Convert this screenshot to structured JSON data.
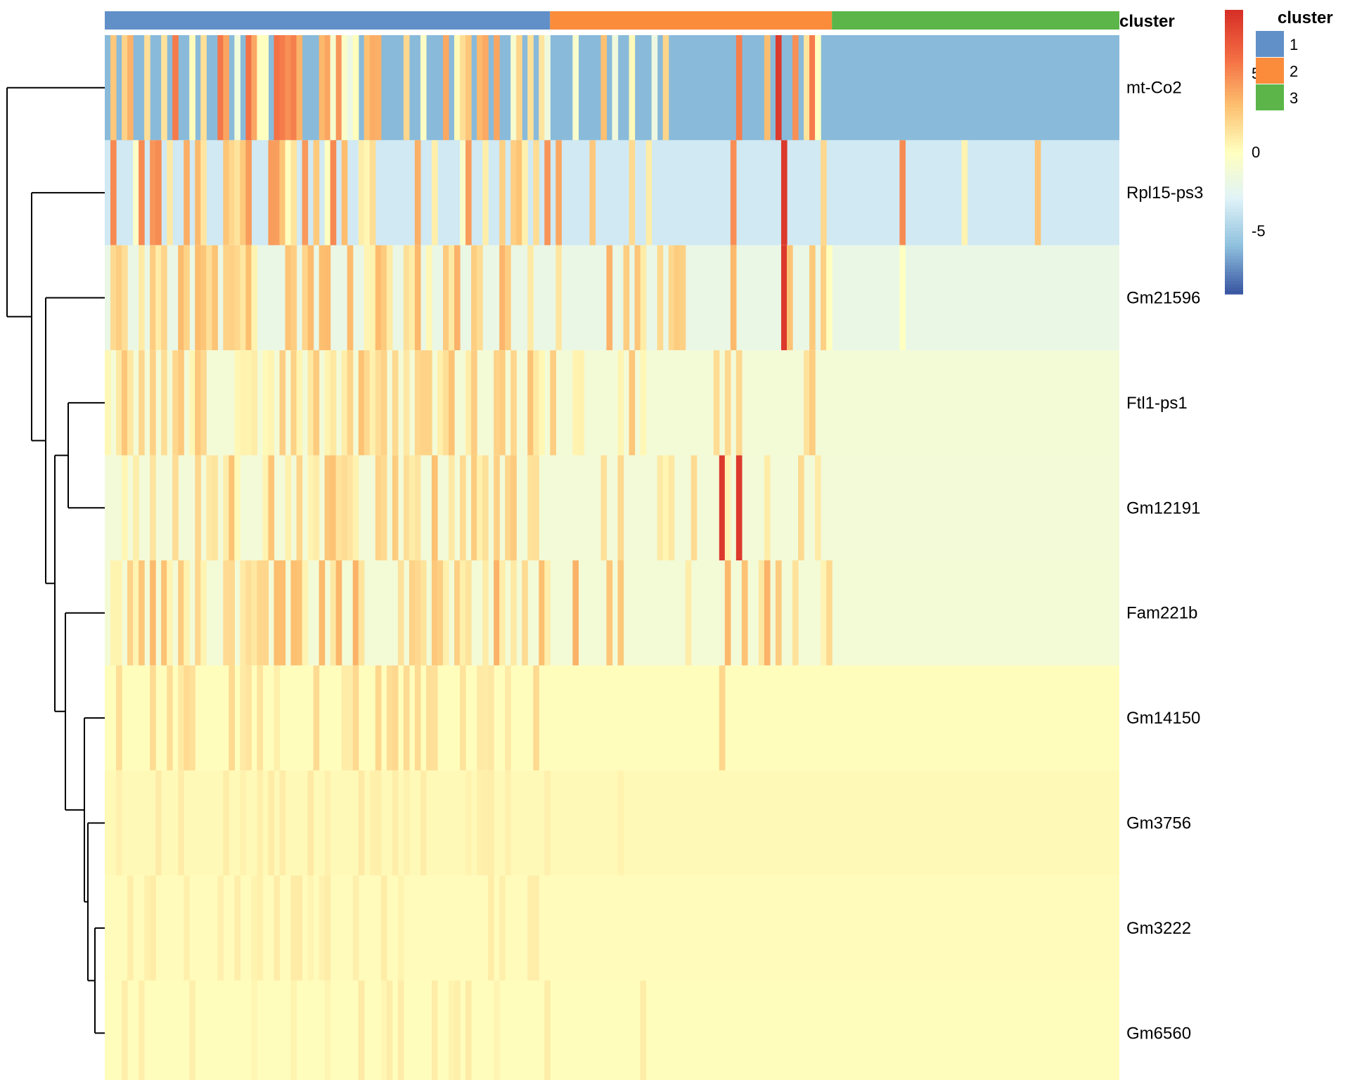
{
  "chart_data": {
    "type": "heatmap",
    "title": "",
    "rows": [
      "mt-Co2",
      "Rpl15-ps3",
      "Gm21596",
      "Ftl1-ps1",
      "Gm12191",
      "Fam221b",
      "Gm14150",
      "Gm3756",
      "Gm3222",
      "Gm6560"
    ],
    "column_annotation": {
      "name": "cluster",
      "groups": [
        {
          "label": "1",
          "color": "#6190C8",
          "column_fraction": 0.44
        },
        {
          "label": "2",
          "color": "#FB8C3B",
          "column_fraction": 0.28
        },
        {
          "label": "3",
          "color": "#5BB548",
          "column_fraction": 0.28
        }
      ]
    },
    "color_scale": {
      "palette": [
        "#3B58A3",
        "#8FC1DE",
        "#E0F3F8",
        "#FFFFBF",
        "#FDBF6F",
        "#F46D43",
        "#D73027"
      ],
      "range": [
        -9,
        9
      ],
      "ticks": [
        "5",
        "0",
        "-5"
      ]
    },
    "row_baseline_values": [
      -6.2,
      -3.6,
      -2.0,
      -1.2,
      -1.3,
      -1.2,
      0.1,
      0.3,
      0.2,
      0.1
    ],
    "row_high_values": [
      6,
      5,
      3.5,
      3,
      3,
      3.5,
      2,
      1,
      1,
      1
    ],
    "row_dendrogram": "((mt-Co2,(Rpl15-ps3,(Gm21596,((Ftl1-ps1,Gm12191),(Fam221b,(Gm14150,(Gm3756,(Gm3222,Gm6560)))))))))"
  },
  "legend": {
    "annotation_title": "cluster",
    "items": [
      {
        "label": "1",
        "color": "#6190C8"
      },
      {
        "label": "2",
        "color": "#FB8C3B"
      },
      {
        "label": "3",
        "color": "#5BB548"
      }
    ]
  }
}
